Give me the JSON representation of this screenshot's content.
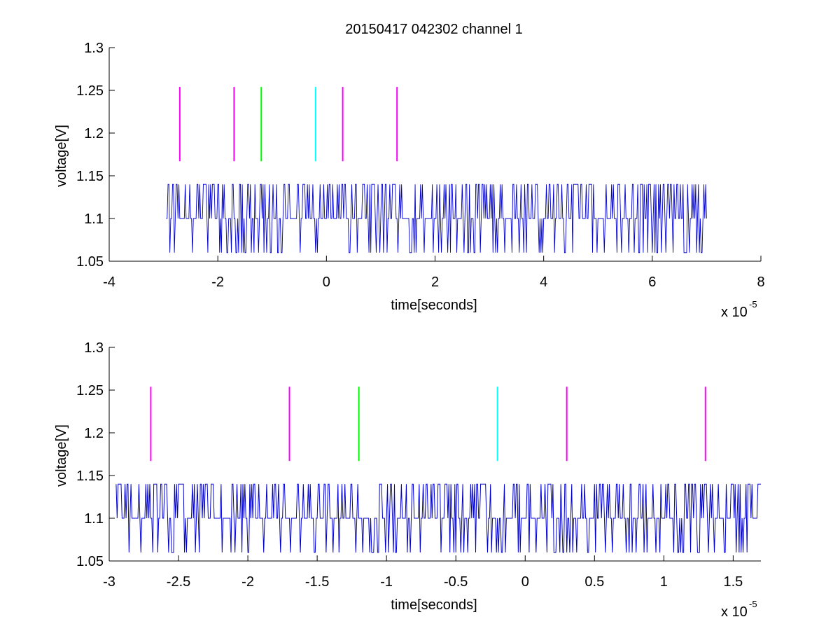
{
  "figure_title": "20150417 042302 channel 1",
  "colors": {
    "axis": "#000000",
    "signal": "#0000cc",
    "magenta": "#ff00ff",
    "green": "#00ff00",
    "cyan": "#00ffff"
  },
  "chart_data": [
    {
      "type": "line",
      "title": "20150417 042302 channel 1",
      "xlabel": "time[seconds]",
      "ylabel": "voltage[V]",
      "x_multiplier": "x 10",
      "x_multiplier_exp": "-5",
      "xlim": [
        -4,
        8
      ],
      "ylim": [
        1.05,
        1.3
      ],
      "xticks": [
        -4,
        -2,
        0,
        2,
        4,
        6,
        8
      ],
      "xtick_labels": [
        "-4",
        "-2",
        "0",
        "2",
        "4",
        "6",
        "8"
      ],
      "yticks": [
        1.05,
        1.1,
        1.15,
        1.2,
        1.25,
        1.3
      ],
      "ytick_labels": [
        "1.05",
        "1.1",
        "1.15",
        "1.2",
        "1.25",
        "1.3"
      ],
      "grid": false,
      "signal": {
        "x_start": -2.95,
        "x_end": 7.0,
        "levels": [
          1.06,
          1.1,
          1.14
        ],
        "baseline": 1.1,
        "description": "noisy digitized trace toggling between 1.06, 1.1 and 1.14"
      },
      "markers": [
        {
          "x": -2.7,
          "y_min": 1.167,
          "y_max": 1.254,
          "color": "magenta"
        },
        {
          "x": -1.7,
          "y_min": 1.167,
          "y_max": 1.254,
          "color": "magenta"
        },
        {
          "x": -1.2,
          "y_min": 1.167,
          "y_max": 1.254,
          "color": "green"
        },
        {
          "x": -0.2,
          "y_min": 1.167,
          "y_max": 1.254,
          "color": "cyan"
        },
        {
          "x": 0.3,
          "y_min": 1.167,
          "y_max": 1.254,
          "color": "magenta"
        },
        {
          "x": 1.3,
          "y_min": 1.167,
          "y_max": 1.254,
          "color": "magenta"
        }
      ]
    },
    {
      "type": "line",
      "title": "",
      "xlabel": "time[seconds]",
      "ylabel": "voltage[V]",
      "x_multiplier": "x 10",
      "x_multiplier_exp": "-5",
      "xlim": [
        -3.0,
        1.7
      ],
      "ylim": [
        1.05,
        1.3
      ],
      "xticks": [
        -3,
        -2.5,
        -2,
        -1.5,
        -1,
        -0.5,
        0,
        0.5,
        1,
        1.5
      ],
      "xtick_labels": [
        "-3",
        "-2.5",
        "-2",
        "-1.5",
        "-1",
        "-0.5",
        "0",
        "0.5",
        "1",
        "1.5"
      ],
      "yticks": [
        1.05,
        1.1,
        1.15,
        1.2,
        1.25,
        1.3
      ],
      "ytick_labels": [
        "1.05",
        "1.1",
        "1.15",
        "1.2",
        "1.25",
        "1.3"
      ],
      "grid": false,
      "signal": {
        "x_start": -2.95,
        "x_end": 1.7,
        "levels": [
          1.06,
          1.1,
          1.14
        ],
        "baseline": 1.1,
        "description": "zoomed view of the same noisy trace"
      },
      "markers": [
        {
          "x": -2.7,
          "y_min": 1.167,
          "y_max": 1.254,
          "color": "magenta"
        },
        {
          "x": -1.7,
          "y_min": 1.167,
          "y_max": 1.254,
          "color": "magenta"
        },
        {
          "x": -1.2,
          "y_min": 1.167,
          "y_max": 1.254,
          "color": "green"
        },
        {
          "x": -0.2,
          "y_min": 1.167,
          "y_max": 1.254,
          "color": "cyan"
        },
        {
          "x": 0.3,
          "y_min": 1.167,
          "y_max": 1.254,
          "color": "magenta"
        },
        {
          "x": 1.3,
          "y_min": 1.167,
          "y_max": 1.254,
          "color": "magenta"
        }
      ]
    }
  ]
}
